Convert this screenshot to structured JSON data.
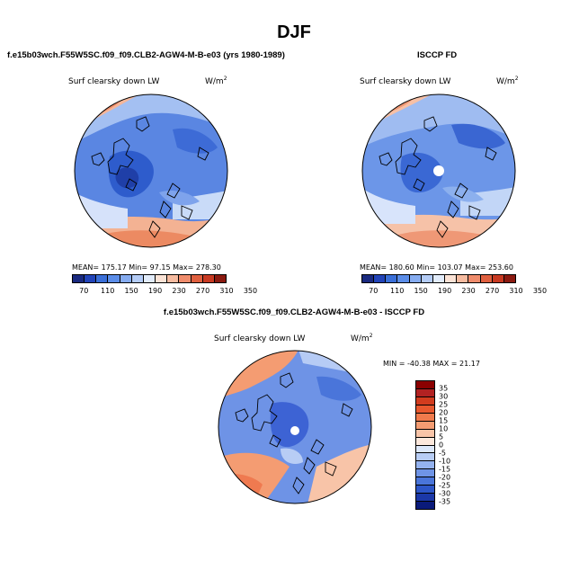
{
  "season": "DJF",
  "panels": [
    {
      "title": "f.e15b03wch.F55W5SC.f09_f09.CLB2-AGW4-M-B-e03 (yrs 1980-1989)",
      "variable": "Surf clearsky down LW",
      "units_base": "W/m",
      "units_exp": "2",
      "stats": "MEAN= 175.17   Min=  97.15   Max= 278.30",
      "colorbar": {
        "colors": [
          "#1a2a80",
          "#2244b8",
          "#3a6fd8",
          "#5b8de8",
          "#86acf0",
          "#b4ccf6",
          "#e2ecfb",
          "#fbe3d6",
          "#f6bba0",
          "#ef8c6c",
          "#e0603f",
          "#c83a22",
          "#8b1a10"
        ],
        "labels": [
          "70",
          "110",
          "150",
          "190",
          "230",
          "270",
          "310",
          "350"
        ]
      }
    },
    {
      "title": "ISCCP FD",
      "variable": "Surf clearsky down LW",
      "units_base": "W/m",
      "units_exp": "2",
      "stats": "MEAN= 180.60   Min= 103.07   Max= 253.60",
      "colorbar": {
        "colors": [
          "#1a2a80",
          "#2244b8",
          "#3a6fd8",
          "#5b8de8",
          "#86acf0",
          "#b4ccf6",
          "#e2ecfb",
          "#fbe3d6",
          "#f6bba0",
          "#ef8c6c",
          "#e0603f",
          "#c83a22",
          "#8b1a10"
        ],
        "labels": [
          "70",
          "110",
          "150",
          "190",
          "230",
          "270",
          "310",
          "350"
        ]
      }
    },
    {
      "title": "f.e15b03wch.F55W5SC.f09_f09.CLB2-AGW4-M-B-e03 - ISCCP FD",
      "variable": "Surf clearsky down LW",
      "units_base": "W/m",
      "units_exp": "2",
      "stats": "MIN = -40.38  MAX =  21.17",
      "colorbar": {
        "colors": [
          "#8b0000",
          "#b22222",
          "#d23c1e",
          "#e8582e",
          "#f07a4c",
          "#f49c72",
          "#f8c4a8",
          "#fde8dc",
          "#dde8fa",
          "#b8cdf5",
          "#94b2ef",
          "#6f94e6",
          "#4a75da",
          "#2d56c8",
          "#1b38a8",
          "#0a1a7a"
        ],
        "labels": [
          "35",
          "30",
          "25",
          "20",
          "15",
          "10",
          "5",
          "0",
          "-5",
          "-10",
          "-15",
          "-20",
          "-25",
          "-30",
          "-35"
        ]
      }
    }
  ]
}
